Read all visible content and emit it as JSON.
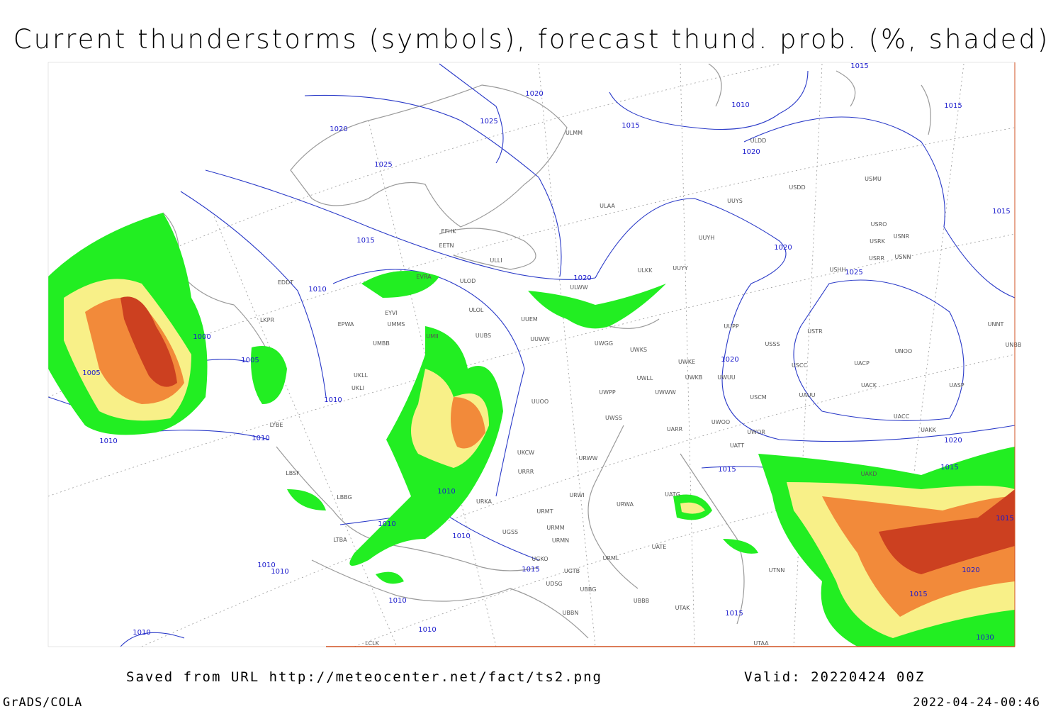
{
  "header": {
    "title": "Current thunderstorms (symbols), forecast thund. prob. (%, shaded)"
  },
  "footer": {
    "saved": "Saved from URL http://meteocenter.net/fact/ts2.png",
    "valid": "Valid: 20220424 00Z",
    "software": "GrADS/COLA",
    "timestamp": "2022-04-24-00:46"
  },
  "isobar_labels": [
    "1020",
    "1025",
    "1020",
    "1025",
    "1015",
    "1010",
    "1015",
    "1015",
    "1020",
    "1015",
    "1015",
    "1020",
    "1025",
    "1020",
    "1010",
    "1000",
    "1005",
    "1005",
    "1020",
    "1010",
    "1010",
    "1010",
    "1020",
    "1015",
    "1015",
    "1010",
    "1015",
    "1010",
    "1010",
    "1015",
    "1020",
    "1010",
    "1010",
    "1015",
    "1010",
    "1015",
    "1010",
    "1010",
    "1030"
  ],
  "stations": [
    "ULMM",
    "ULDD",
    "USDD",
    "USMU",
    "ULAA",
    "UUYS",
    "USRO",
    "USRK",
    "USNR",
    "EFHK",
    "EETN",
    "UUYH",
    "USRR",
    "USNN",
    "ULLI",
    "ULKK",
    "UUYY",
    "USHH",
    "EVRA",
    "ULOD",
    "ULWW",
    "EDDT",
    "ULOL",
    "EYVI",
    "UUEM",
    "LKPR",
    "EPWA",
    "UMMS",
    "UUPP",
    "USTR",
    "UMII",
    "UUBS",
    "UUWW",
    "UMBB",
    "UWGG",
    "USSS",
    "UNOO",
    "UWKS",
    "UNNT",
    "UNBB",
    "UWKE",
    "UACP",
    "UKLL",
    "UWUU",
    "USCC",
    "UWKB",
    "UWLL",
    "UKLI",
    "UACK",
    "UASP",
    "UWPP",
    "UWWW",
    "USCM",
    "UAUU",
    "UUOO",
    "UWSS",
    "UACC",
    "LYBE",
    "UWOO",
    "UARR",
    "UWOR",
    "UAKK",
    "UATT",
    "UKCW",
    "URWW",
    "URRR",
    "UAKD",
    "LBSF",
    "URWI",
    "UATG",
    "LBBG",
    "URKA",
    "URMT",
    "URWA",
    "UATE",
    "LTBA",
    "UGSS",
    "URMM",
    "URMN",
    "URML",
    "UTNN",
    "UGKO",
    "UGTB",
    "UDSG",
    "UBBG",
    "UBBB",
    "UTAK",
    "UBBN",
    "UTAA",
    "LCLK"
  ]
}
